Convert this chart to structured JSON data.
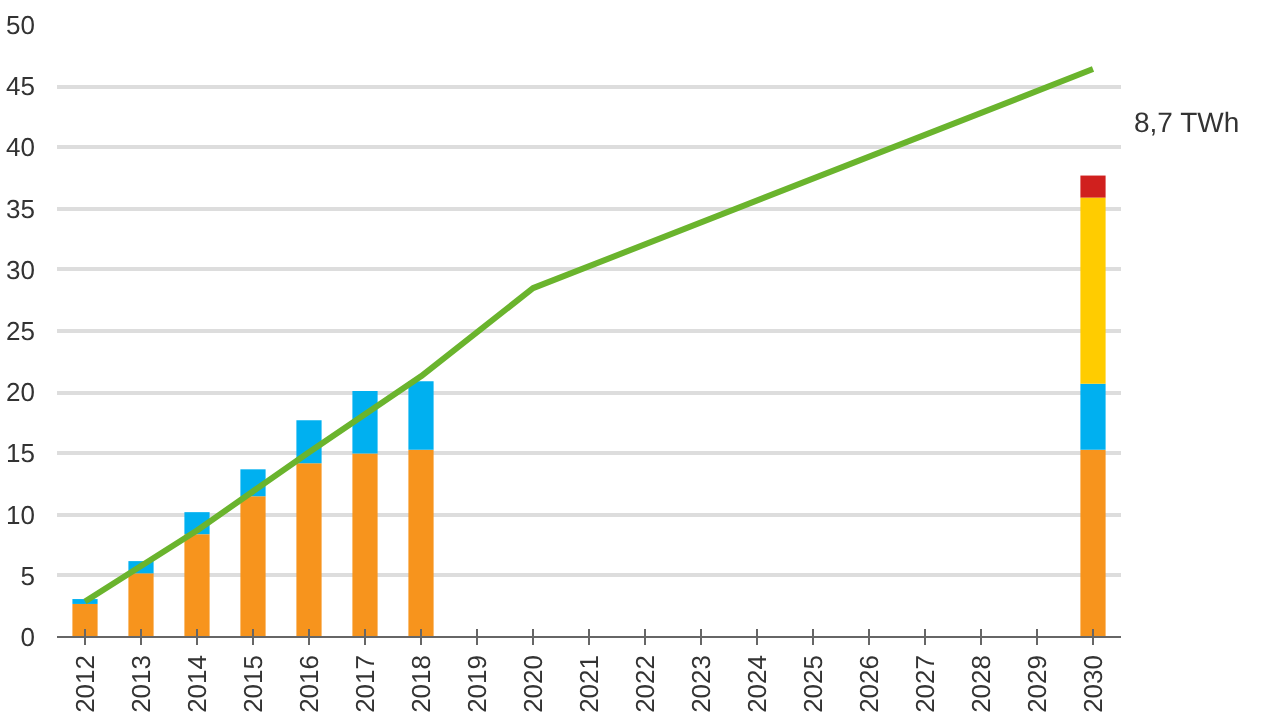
{
  "chart_data": {
    "type": "bar",
    "stacked": true,
    "x": [
      2012,
      2013,
      2014,
      2015,
      2016,
      2017,
      2018,
      2019,
      2020,
      2021,
      2022,
      2023,
      2024,
      2025,
      2026,
      2027,
      2028,
      2029,
      2030
    ],
    "series": [
      {
        "color": "#f7941d",
        "values": [
          2.7,
          5.2,
          8.4,
          11.5,
          14.2,
          15.0,
          15.3,
          null,
          null,
          null,
          null,
          null,
          null,
          null,
          null,
          null,
          null,
          null,
          15.3
        ]
      },
      {
        "color": "#00b0f0",
        "values": [
          0.4,
          1.0,
          1.8,
          2.2,
          3.5,
          5.1,
          5.6,
          null,
          null,
          null,
          null,
          null,
          null,
          null,
          null,
          null,
          null,
          null,
          5.4
        ]
      },
      {
        "color": "#ffcc00",
        "values": [
          null,
          null,
          null,
          null,
          null,
          null,
          null,
          null,
          null,
          null,
          null,
          null,
          null,
          null,
          null,
          null,
          null,
          null,
          15.2
        ]
      },
      {
        "color": "#d0201e",
        "values": [
          null,
          null,
          null,
          null,
          null,
          null,
          null,
          null,
          null,
          null,
          null,
          null,
          null,
          null,
          null,
          null,
          null,
          null,
          1.8
        ]
      },
      {
        "type": "line",
        "color": "#6ab42d",
        "x": [
          2012,
          2014,
          2016,
          2018,
          2020,
          2030
        ],
        "values": [
          2.9,
          8.7,
          15.1,
          21.3,
          28.5,
          46.4
        ]
      }
    ],
    "xlim": [
      2011.5,
      2030.5
    ],
    "xticks": [
      2012,
      2013,
      2014,
      2015,
      2016,
      2017,
      2018,
      2019,
      2020,
      2021,
      2022,
      2023,
      2024,
      2025,
      2026,
      2027,
      2028,
      2029,
      2030
    ],
    "ylim": [
      0,
      50
    ],
    "yticks": [
      0,
      5,
      10,
      15,
      20,
      25,
      30,
      35,
      40,
      45,
      50
    ],
    "grid": "y",
    "annotations": [
      "8,7 TWh"
    ]
  }
}
